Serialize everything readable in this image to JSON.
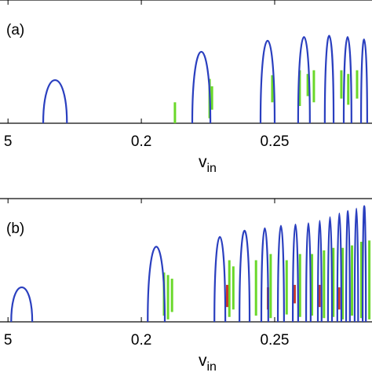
{
  "chart_data": [
    {
      "type": "arches",
      "label": "(a)",
      "xlabel": "v",
      "xlabel_sub": "in",
      "xlim": [
        0.147,
        0.2865
      ],
      "xticks": [
        {
          "value": 0.15,
          "label": "5"
        },
        0.2,
        0.25
      ],
      "ylim": [
        0,
        1
      ],
      "arches": {
        "color": "#2a3fbf",
        "x0": [
          0.1632,
          0.2191,
          0.2447,
          0.2588,
          0.2688,
          0.2759,
          0.2824
        ],
        "x1": [
          0.1721,
          0.2259,
          0.25,
          0.2632,
          0.2721,
          0.2788,
          0.2847
        ],
        "values": [
          0.35,
          0.58,
          0.67,
          0.7,
          0.71,
          0.7,
          0.68
        ]
      },
      "segments": [
        {
          "color": "#6ad82a",
          "x": [
            0.2126,
            0.2256,
            0.2265,
            0.2491,
            0.2594,
            0.2647,
            0.275,
            0.2809,
            0.2776,
            0.2624
          ],
          "low": [
            0.0,
            0.04,
            0.11,
            0.17,
            0.14,
            0.17,
            0.2,
            0.2,
            0.15,
            0.22
          ],
          "values": [
            0.17,
            0.36,
            0.3,
            0.39,
            0.43,
            0.43,
            0.43,
            0.43,
            0.4,
            0.4
          ]
        }
      ]
    },
    {
      "type": "arches",
      "label": "(b)",
      "xlabel": "v",
      "xlabel_sub": "in",
      "xlim": [
        0.147,
        0.2865
      ],
      "xticks": [
        {
          "value": 0.15,
          "label": "5"
        },
        0.2,
        0.25
      ],
      "ylim": [
        0,
        1
      ],
      "arches": {
        "color": "#2a3fbf",
        "x0": [
          0.1512,
          0.2024,
          0.2274,
          0.2368,
          0.245,
          0.2512,
          0.2568,
          0.2618,
          0.2662,
          0.27,
          0.2735,
          0.2768,
          0.28,
          0.283
        ],
        "x1": [
          0.1591,
          0.2088,
          0.2315,
          0.2406,
          0.2476,
          0.2535,
          0.2588,
          0.2635,
          0.2676,
          0.2715,
          0.275,
          0.2782,
          0.2813,
          0.2842
        ],
        "values": [
          0.28,
          0.61,
          0.69,
          0.74,
          0.76,
          0.78,
          0.79,
          0.8,
          0.82,
          0.85,
          0.88,
          0.9,
          0.92,
          0.94
        ]
      },
      "segments": [
        {
          "color": "#6ad82a",
          "x": [
            0.2085,
            0.21,
            0.2115,
            0.233,
            0.2345,
            0.243,
            0.2485,
            0.2545,
            0.2595,
            0.264,
            0.2685,
            0.272,
            0.2755,
            0.279,
            0.2825,
            0.2855
          ],
          "low": [
            0.05,
            0.02,
            0.08,
            0.04,
            0.1,
            0.05,
            0.03,
            0.06,
            0.04,
            0.05,
            0.03,
            0.04,
            0.02,
            0.05,
            0.03,
            0.02
          ],
          "values": [
            0.4,
            0.38,
            0.35,
            0.5,
            0.45,
            0.5,
            0.55,
            0.5,
            0.55,
            0.55,
            0.58,
            0.6,
            0.6,
            0.62,
            0.65,
            0.66
          ]
        },
        {
          "color": "#c83a2a",
          "x": [
            0.2322,
            0.2475,
            0.2575,
            0.2668,
            0.2742
          ],
          "low": [
            0.12,
            0.1,
            0.15,
            0.12,
            0.1
          ],
          "values": [
            0.3,
            0.28,
            0.3,
            0.3,
            0.28
          ]
        }
      ]
    }
  ]
}
